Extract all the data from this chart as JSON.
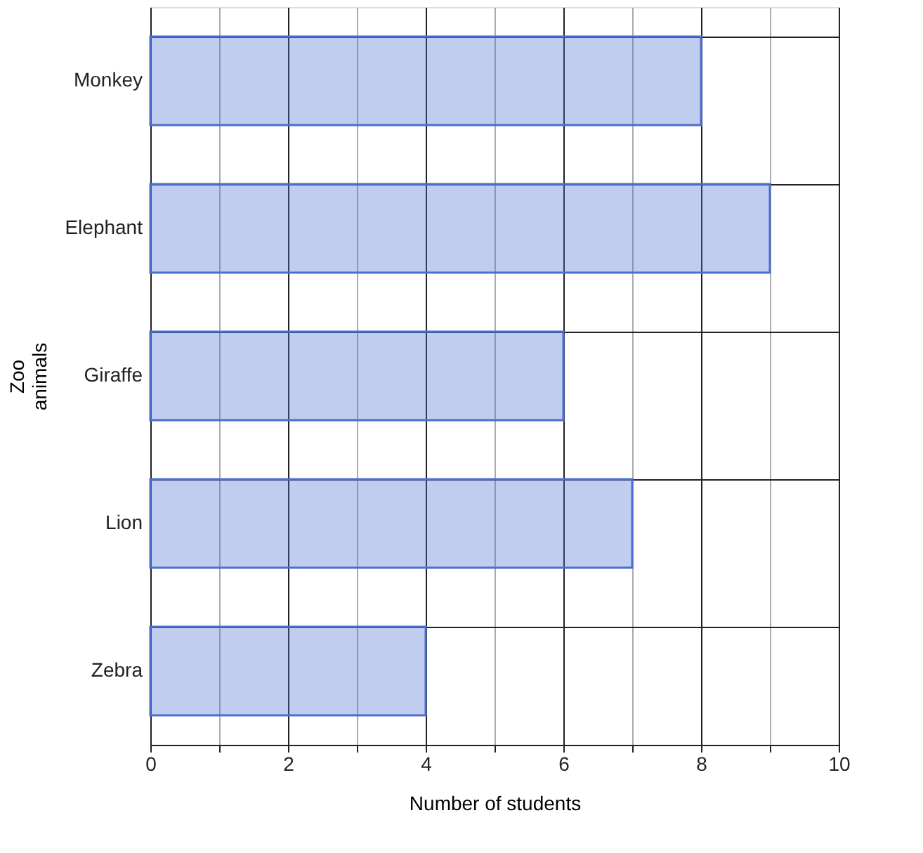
{
  "chart_data": {
    "type": "bar",
    "orientation": "horizontal",
    "categories": [
      "Monkey",
      "Elephant",
      "Giraffe",
      "Lion",
      "Zebra"
    ],
    "values": [
      8,
      9,
      6,
      7,
      4
    ],
    "color": "#4a6fd0",
    "xlabel": "Number of students",
    "ylabel": "Zoo animals",
    "xlim": [
      0,
      10
    ],
    "xticks": [
      0,
      {
        "value": 1,
        "label": null
      },
      2,
      {
        "value": 3,
        "label": null
      },
      4,
      {
        "value": 5,
        "label": null
      },
      6,
      {
        "value": 7,
        "label": null
      },
      8,
      {
        "value": 9,
        "label": null
      },
      10
    ],
    "grid": "x"
  }
}
